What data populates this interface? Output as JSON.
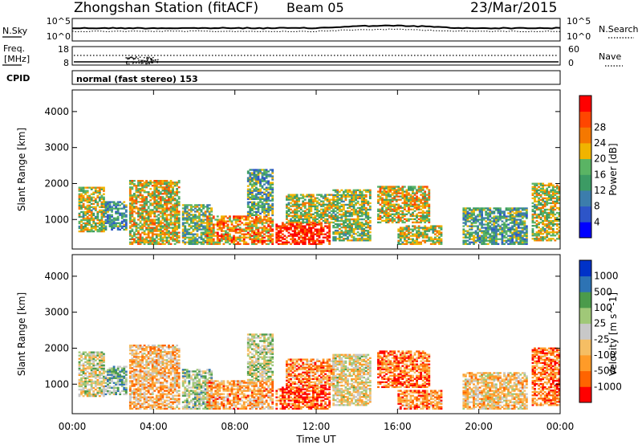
{
  "header": {
    "title": "Zhongshan Station (fitACF)",
    "beam": "Beam 05",
    "date": "23/Mar/2015"
  },
  "top_panels": {
    "nsky_label": "N.Sky",
    "nsky_ticks": [
      "10^5",
      "10^0"
    ],
    "nsearch_label": "N.Search",
    "nsearch_ticks": [
      "10^5",
      "10^0"
    ],
    "freq_label_1": "Freq.",
    "freq_label_2": "[MHz]",
    "freq_ticks": [
      "18",
      "8"
    ],
    "nave_label": "Nave",
    "nave_ticks": [
      "60",
      "0"
    ],
    "cpid_label": "CPID",
    "cpid_text": "normal (fast stereo) 153"
  },
  "chart_data": [
    {
      "type": "heatmap",
      "name": "power",
      "ylabel": "Slant Range [km]",
      "ylim": [
        180,
        4600
      ],
      "yticks": [
        "4000",
        "3000",
        "2000",
        "1000"
      ],
      "colorbar_label": "Power [dB]",
      "colorbar_ticks": [
        "28",
        "24",
        "20",
        "16",
        "12",
        "8",
        "4"
      ],
      "colors": [
        "#0000ff",
        "#2d55c8",
        "#3c7dac",
        "#3c9b64",
        "#5ab464",
        "#f0b400",
        "#f57800",
        "#ff4600",
        "#ff0000"
      ],
      "patches": [
        {
          "t0": 0.3,
          "t1": 1.6,
          "r0": 650,
          "r1": 1900,
          "level": 0.55
        },
        {
          "t0": 1.6,
          "t1": 2.7,
          "r0": 700,
          "r1": 1500,
          "level": 0.35
        },
        {
          "t0": 2.8,
          "t1": 5.2,
          "r0": 300,
          "r1": 2100,
          "level": 0.6
        },
        {
          "t0": 5.4,
          "t1": 6.8,
          "r0": 300,
          "r1": 1400,
          "level": 0.45
        },
        {
          "t0": 6.6,
          "t1": 9.8,
          "r0": 300,
          "r1": 1100,
          "level": 0.7
        },
        {
          "t0": 8.6,
          "t1": 9.8,
          "r0": 1100,
          "r1": 2400,
          "level": 0.4
        },
        {
          "t0": 10.0,
          "t1": 12.6,
          "r0": 300,
          "r1": 900,
          "level": 0.9
        },
        {
          "t0": 10.5,
          "t1": 12.8,
          "r0": 900,
          "r1": 1700,
          "level": 0.55
        },
        {
          "t0": 12.8,
          "t1": 14.6,
          "r0": 400,
          "r1": 1800,
          "level": 0.5
        },
        {
          "t0": 15.0,
          "t1": 17.6,
          "r0": 900,
          "r1": 1900,
          "level": 0.6
        },
        {
          "t0": 16.0,
          "t1": 18.2,
          "r0": 300,
          "r1": 800,
          "level": 0.55
        },
        {
          "t0": 19.2,
          "t1": 22.4,
          "r0": 300,
          "r1": 1300,
          "level": 0.4
        },
        {
          "t0": 22.6,
          "t1": 24.0,
          "r0": 400,
          "r1": 2000,
          "level": 0.55
        }
      ]
    },
    {
      "type": "heatmap",
      "name": "velocity",
      "ylabel": "Slant Range [km]",
      "xlabel": "Time UT",
      "xticks": [
        "00:00",
        "04:00",
        "08:00",
        "12:00",
        "16:00",
        "20:00",
        "00:00"
      ],
      "ylim": [
        180,
        4600
      ],
      "yticks": [
        "4000",
        "3000",
        "2000",
        "1000"
      ],
      "colorbar_label": "Velocity [m s^-1]",
      "colorbar_ticks": [
        "1000",
        "500",
        "100",
        "25",
        "-25",
        "-100",
        "-500",
        "-1000"
      ],
      "colors": [
        "#ff0000",
        "#ff6400",
        "#ff9b28",
        "#f5be64",
        "#c8c8c8",
        "#a0c878",
        "#4b9b4b",
        "#2d73b4",
        "#0032c8"
      ],
      "patches": [
        {
          "t0": 0.3,
          "t1": 1.6,
          "r0": 650,
          "r1": 1900,
          "level": 0.5
        },
        {
          "t0": 1.6,
          "t1": 2.7,
          "r0": 700,
          "r1": 1500,
          "level": 0.65
        },
        {
          "t0": 2.8,
          "t1": 5.2,
          "r0": 300,
          "r1": 2100,
          "level": 0.35
        },
        {
          "t0": 5.4,
          "t1": 6.8,
          "r0": 300,
          "r1": 1400,
          "level": 0.6
        },
        {
          "t0": 6.6,
          "t1": 9.8,
          "r0": 300,
          "r1": 1100,
          "level": 0.3
        },
        {
          "t0": 8.6,
          "t1": 9.8,
          "r0": 1100,
          "r1": 2400,
          "level": 0.55
        },
        {
          "t0": 10.0,
          "t1": 12.6,
          "r0": 300,
          "r1": 900,
          "level": 0.15
        },
        {
          "t0": 10.5,
          "t1": 12.8,
          "r0": 900,
          "r1": 1700,
          "level": 0.25
        },
        {
          "t0": 12.8,
          "t1": 14.6,
          "r0": 400,
          "r1": 1800,
          "level": 0.45
        },
        {
          "t0": 15.0,
          "t1": 17.6,
          "r0": 900,
          "r1": 1900,
          "level": 0.2
        },
        {
          "t0": 16.0,
          "t1": 18.2,
          "r0": 300,
          "r1": 800,
          "level": 0.25
        },
        {
          "t0": 19.2,
          "t1": 22.4,
          "r0": 300,
          "r1": 1300,
          "level": 0.4
        },
        {
          "t0": 22.6,
          "t1": 24.0,
          "r0": 400,
          "r1": 2000,
          "level": 0.2
        }
      ]
    }
  ]
}
